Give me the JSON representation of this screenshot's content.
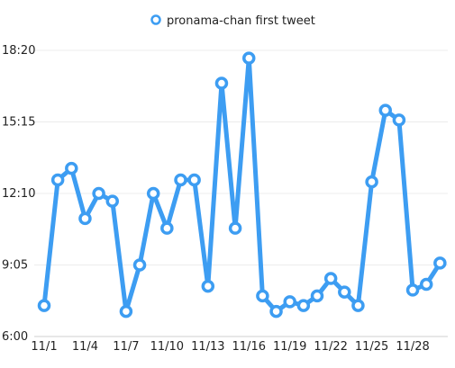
{
  "chart_data": {
    "type": "line",
    "legend": {
      "position": "top-center",
      "entries": [
        "pronama-chan first tweet"
      ]
    },
    "x": [
      "11/1",
      "11/2",
      "11/3",
      "11/4",
      "11/5",
      "11/6",
      "11/7",
      "11/8",
      "11/9",
      "11/10",
      "11/11",
      "11/12",
      "11/13",
      "11/14",
      "11/15",
      "11/16",
      "11/17",
      "11/18",
      "11/19",
      "11/20",
      "11/21",
      "11/22",
      "11/23",
      "11/24",
      "11/25",
      "11/26",
      "11/27",
      "11/28",
      "11/29",
      "11/30"
    ],
    "x_tick_labels": [
      "11/1",
      "11/4",
      "11/7",
      "11/10",
      "11/13",
      "11/16",
      "11/19",
      "11/22",
      "11/25",
      "11/28"
    ],
    "series": [
      {
        "name": "pronama-chan first tweet",
        "color": "#3d9df2",
        "values": [
          "7:20",
          "12:45",
          "13:15",
          "11:05",
          "12:10",
          "11:50",
          "7:05",
          "9:05",
          "12:10",
          "10:40",
          "12:45",
          "12:45",
          "8:10",
          "16:55",
          "10:40",
          "18:00",
          "7:45",
          "7:05",
          "7:30",
          "7:20",
          "7:45",
          "8:30",
          "7:55",
          "7:20",
          "12:40",
          "15:45",
          "15:20",
          "8:00",
          "8:15",
          "9:10"
        ]
      }
    ],
    "y_ticks": [
      "6:00",
      "9:05",
      "12:10",
      "15:15",
      "18:20"
    ],
    "ylim": [
      "6:00",
      "18:20"
    ],
    "grid": {
      "horizontal": true,
      "vertical": false
    }
  }
}
